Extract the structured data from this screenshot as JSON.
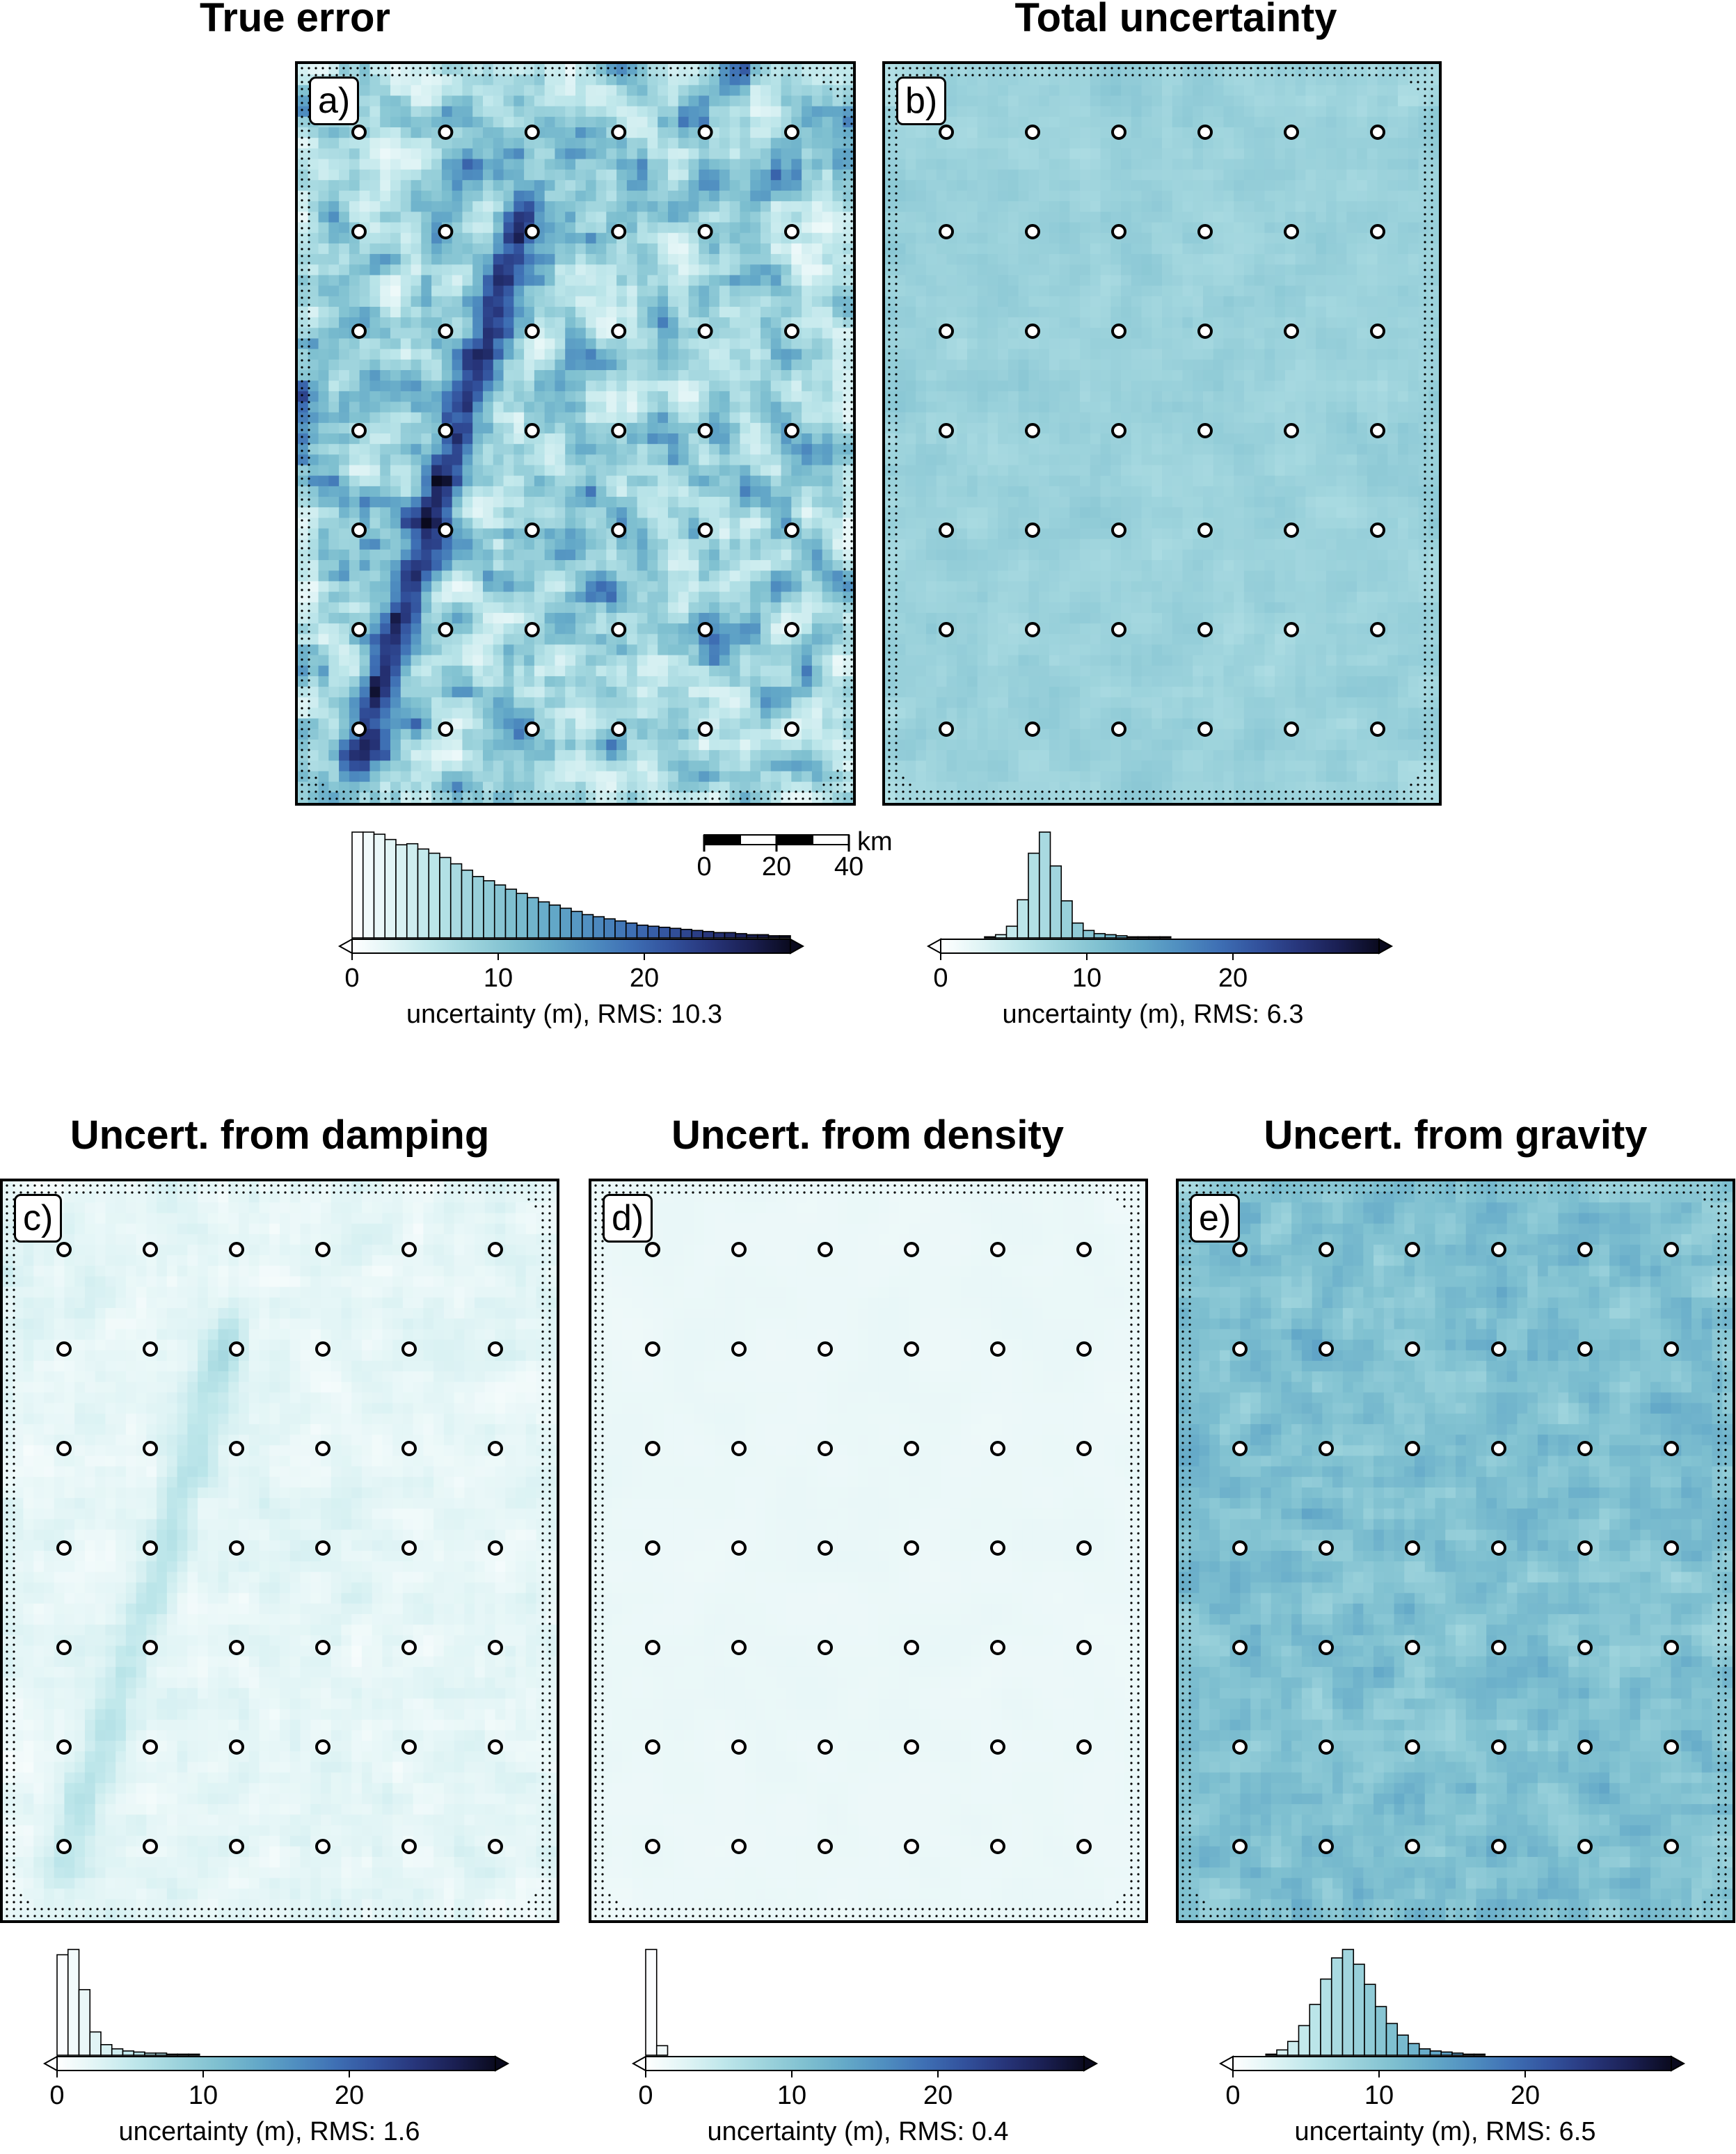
{
  "palette": [
    "#ffffff",
    "#e0f4f5",
    "#bde6ea",
    "#9dd3dc",
    "#7fc0d0",
    "#64a9c8",
    "#4f8ec0",
    "#3e6fb4",
    "#32519c",
    "#27357a",
    "#1a1f52",
    "#0a0a1e"
  ],
  "scalebar": {
    "ticks": [
      "0",
      "20",
      "40"
    ],
    "unit": "km"
  },
  "chart_data": [
    {
      "type": "heatmap",
      "id": "a",
      "label": "a)",
      "title": "True error",
      "colorbar": {
        "label": "uncertainty (m), RMS: 10.3",
        "ticks": [
          0,
          10,
          20
        ],
        "range": [
          0,
          30
        ],
        "rms": 10.3
      },
      "histogram": {
        "bin_width": 0.75,
        "counts": [
          100,
          100,
          98,
          93,
          88,
          89,
          84,
          80,
          76,
          70,
          64,
          58,
          54,
          50,
          46,
          42,
          38,
          34,
          31,
          28,
          25,
          22,
          20,
          18,
          16,
          14,
          12,
          11,
          10,
          9,
          8,
          7,
          6,
          5,
          5,
          4,
          3,
          3,
          2,
          2
        ]
      },
      "stations": {
        "cols": 6,
        "rows": 7
      }
    },
    {
      "type": "heatmap",
      "id": "b",
      "label": "b)",
      "title": "Total uncertainty",
      "colorbar": {
        "label": "uncertainty (m), RMS: 6.3",
        "ticks": [
          0,
          10,
          20
        ],
        "range": [
          0,
          30
        ],
        "rms": 6.3
      },
      "histogram": {
        "bin_width": 0.75,
        "counts": [
          0,
          0,
          0,
          0,
          1,
          3,
          11,
          36,
          80,
          100,
          68,
          35,
          14,
          7,
          4,
          3,
          2,
          1,
          1,
          1,
          1,
          0
        ]
      },
      "stations": {
        "cols": 6,
        "rows": 7
      }
    },
    {
      "type": "heatmap",
      "id": "c",
      "label": "c)",
      "title": "Uncert. from damping",
      "colorbar": {
        "label": "uncertainty (m), RMS: 1.6",
        "ticks": [
          0,
          10,
          20
        ],
        "range": [
          0,
          30
        ],
        "rms": 1.6
      },
      "histogram": {
        "bin_width": 0.75,
        "counts": [
          95,
          100,
          62,
          22,
          10,
          6,
          4,
          3,
          2,
          2,
          1,
          1,
          1
        ]
      },
      "stations": {
        "cols": 6,
        "rows": 7
      }
    },
    {
      "type": "heatmap",
      "id": "d",
      "label": "d)",
      "title": "Uncert. from density",
      "colorbar": {
        "label": "uncertainty (m), RMS: 0.4",
        "ticks": [
          0,
          10,
          20
        ],
        "range": [
          0,
          30
        ],
        "rms": 0.4
      },
      "histogram": {
        "bin_width": 0.75,
        "counts": [
          100,
          9
        ]
      },
      "stations": {
        "cols": 6,
        "rows": 7
      }
    },
    {
      "type": "heatmap",
      "id": "e",
      "label": "e)",
      "title": "Uncert. from gravity",
      "colorbar": {
        "label": "uncertainty (m), RMS: 6.5",
        "ticks": [
          0,
          10,
          20
        ],
        "range": [
          0,
          30
        ],
        "rms": 6.5
      },
      "histogram": {
        "bin_width": 0.75,
        "counts": [
          0,
          0,
          0,
          1,
          5,
          13,
          28,
          48,
          72,
          92,
          100,
          86,
          67,
          46,
          30,
          19,
          11,
          6,
          4,
          3,
          2,
          1,
          1
        ]
      },
      "stations": {
        "cols": 6,
        "rows": 7
      }
    }
  ]
}
